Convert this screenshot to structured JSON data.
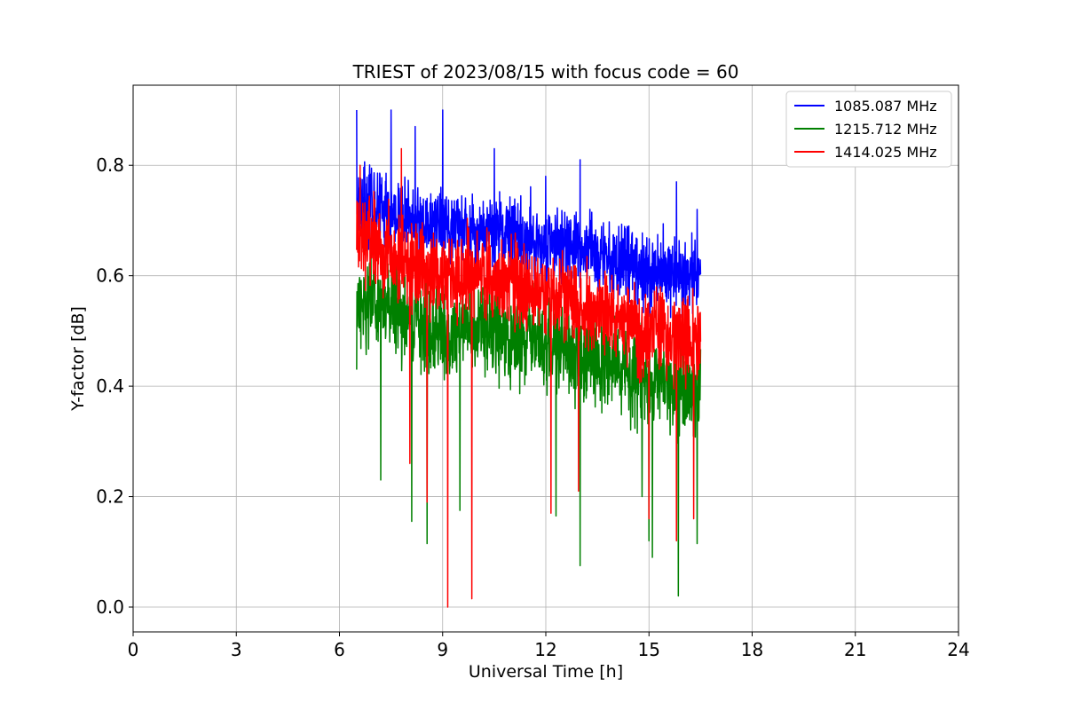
{
  "chart_data": {
    "type": "line",
    "title": "TRIEST of 2023/08/15 with focus code = 60",
    "xlabel": "Universal Time [h]",
    "ylabel": "Y-factor [dB]",
    "xlim": [
      0,
      24
    ],
    "ylim": [
      -0.045,
      0.945
    ],
    "xticks": [
      0,
      3,
      6,
      9,
      12,
      15,
      18,
      21,
      24
    ],
    "yticks": [
      0.0,
      0.2,
      0.4,
      0.6,
      0.8
    ],
    "ytick_labels": [
      "0.0",
      "0.2",
      "0.4",
      "0.6",
      "0.8"
    ],
    "grid": true,
    "legend_position": "top-right",
    "data_x_range": [
      6.5,
      16.5
    ],
    "series": [
      {
        "name": "1085.087 MHz",
        "color": "#0000ff",
        "noise": 0.075,
        "trend": [
          [
            6.5,
            0.74
          ],
          [
            7.5,
            0.71
          ],
          [
            9.0,
            0.69
          ],
          [
            10.5,
            0.68
          ],
          [
            12.0,
            0.66
          ],
          [
            13.5,
            0.64
          ],
          [
            15.0,
            0.61
          ],
          [
            16.5,
            0.6
          ]
        ],
        "peaks": [
          [
            6.5,
            0.9
          ],
          [
            7.5,
            0.9
          ],
          [
            8.2,
            0.87
          ],
          [
            9.0,
            0.9
          ],
          [
            10.5,
            0.83
          ],
          [
            12.0,
            0.78
          ],
          [
            13.0,
            0.81
          ],
          [
            15.8,
            0.77
          ],
          [
            16.4,
            0.72
          ]
        ]
      },
      {
        "name": "1215.712 MHz",
        "color": "#008000",
        "noise": 0.09,
        "trend": [
          [
            6.5,
            0.56
          ],
          [
            7.5,
            0.54
          ],
          [
            9.0,
            0.5
          ],
          [
            10.5,
            0.5
          ],
          [
            12.0,
            0.48
          ],
          [
            13.5,
            0.45
          ],
          [
            15.0,
            0.41
          ],
          [
            16.5,
            0.39
          ]
        ],
        "peaks": [
          [
            6.5,
            0.43
          ],
          [
            7.2,
            0.23
          ],
          [
            8.1,
            0.155
          ],
          [
            8.55,
            0.115
          ],
          [
            9.5,
            0.175
          ],
          [
            12.3,
            0.165
          ],
          [
            13.0,
            0.075
          ],
          [
            14.8,
            0.2
          ],
          [
            15.0,
            0.12
          ],
          [
            15.1,
            0.09
          ],
          [
            15.85,
            0.02
          ],
          [
            16.4,
            0.115
          ]
        ]
      },
      {
        "name": "1414.025 MHz",
        "color": "#ff0000",
        "noise": 0.085,
        "trend": [
          [
            6.5,
            0.67
          ],
          [
            7.5,
            0.64
          ],
          [
            9.0,
            0.6
          ],
          [
            10.5,
            0.6
          ],
          [
            12.0,
            0.57
          ],
          [
            13.5,
            0.54
          ],
          [
            15.0,
            0.5
          ],
          [
            16.5,
            0.48
          ]
        ],
        "peaks": [
          [
            6.6,
            0.8
          ],
          [
            7.8,
            0.83
          ],
          [
            8.05,
            0.26
          ],
          [
            8.55,
            0.19
          ],
          [
            9.15,
            0.0
          ],
          [
            9.85,
            0.015
          ],
          [
            12.15,
            0.17
          ],
          [
            12.95,
            0.21
          ],
          [
            15.0,
            0.16
          ],
          [
            15.8,
            0.12
          ],
          [
            16.3,
            0.16
          ]
        ]
      }
    ]
  }
}
